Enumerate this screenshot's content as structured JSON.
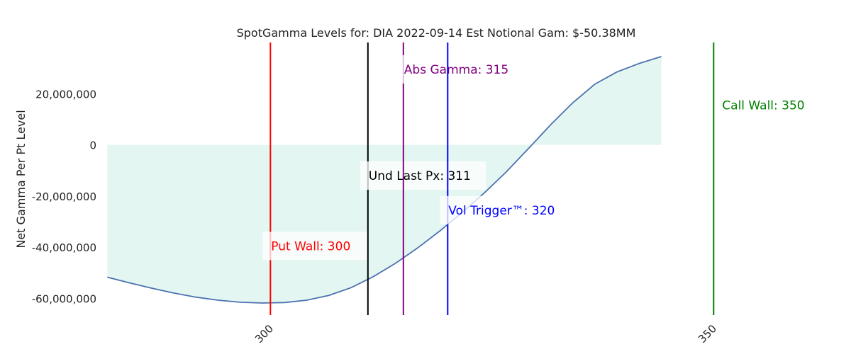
{
  "chart_data": {
    "type": "area",
    "title": "SpotGamma Levels for: DIA  2022-09-14 Est Notional Gam: $-50.38MM",
    "xlabel": "",
    "ylabel": "Net Gamma Per Pt Level",
    "xlim": [
      281.5,
      357.5
    ],
    "ylim": [
      -66500000,
      40000000
    ],
    "x_ticks": [
      300,
      350
    ],
    "x_tick_labels": [
      "300",
      "350"
    ],
    "y_ticks": [
      20000000,
      0,
      -20000000,
      -40000000,
      -60000000
    ],
    "y_tick_labels": [
      "20,000,000",
      "0",
      "-20,000,000",
      "-40,000,000",
      "-60,000,000"
    ],
    "grid": false,
    "legend": "none",
    "series": [
      {
        "x": [
          281.6,
          284.1,
          286.6,
          289.1,
          291.6,
          294.1,
          296.6,
          299.1,
          301.6,
          304.1,
          306.6,
          309.1,
          311.6,
          314.1,
          316.6,
          319.1,
          321.6,
          324.1,
          326.6,
          329.1,
          331.6,
          334.1,
          336.6,
          339.1,
          341.6,
          344.1
        ],
        "values": [
          -51700000,
          -53900000,
          -56000000,
          -57900000,
          -59500000,
          -60700000,
          -61500000,
          -61800000,
          -61600000,
          -60700000,
          -58800000,
          -55800000,
          -51500000,
          -46300000,
          -40300000,
          -33700000,
          -26500000,
          -18900000,
          -10600000,
          -1500000,
          7800000,
          16400000,
          23700000,
          28500000,
          31800000,
          34500000
        ],
        "line_color": "#4c72b0",
        "fill_color": "#e3f6f2"
      }
    ],
    "levels": [
      {
        "x": 300,
        "color": "#ff0000",
        "label": "Put Wall: 300",
        "label_y": -39500000,
        "label_box": true
      },
      {
        "x": 311,
        "color": "#000000",
        "label": "Und Last Px: 311",
        "label_y": -12000000,
        "label_box": true
      },
      {
        "x": 315,
        "color": "#800080",
        "label": "Abs Gamma: 315",
        "label_y": 29500000,
        "label_box": true
      },
      {
        "x": 320,
        "color": "#0000ff",
        "label": "Vol Trigger™: 320",
        "label_y": -25500000,
        "label_box": true
      },
      {
        "x": 350,
        "color": "#008000",
        "label": "Call Wall: 350",
        "label_y": 15500000,
        "label_box": false
      }
    ]
  }
}
